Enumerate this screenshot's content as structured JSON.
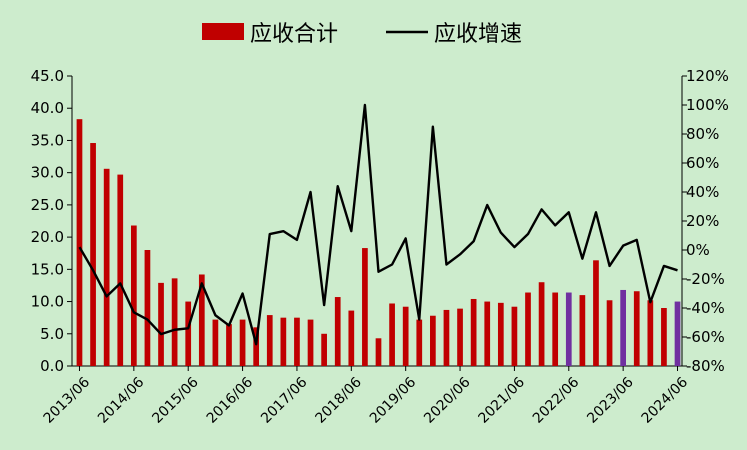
{
  "chart_data": {
    "type": "bar+line",
    "legend": [
      {
        "name": "应收合计",
        "type": "bar",
        "color": "#c00000"
      },
      {
        "name": "应收增速",
        "type": "line",
        "color": "#000000"
      }
    ],
    "legend_position": "top",
    "x_tick_labels": [
      "2013/06",
      "2014/06",
      "2015/06",
      "2016/06",
      "2017/06",
      "2018/06",
      "2019/06",
      "2020/06",
      "2021/06",
      "2022/06",
      "2023/06",
      "2024/06"
    ],
    "y_left": {
      "min": 0,
      "max": 45,
      "ticks": [
        "0.0",
        "5.0",
        "10.0",
        "15.0",
        "20.0",
        "25.0",
        "30.0",
        "35.0",
        "40.0",
        "45.0"
      ]
    },
    "y_right": {
      "min": -80,
      "max": 120,
      "ticks": [
        "-80%",
        "-60%",
        "-40%",
        "-20%",
        "0%",
        "20%",
        "40%",
        "60%",
        "80%",
        "100%",
        "120%"
      ]
    },
    "series": [
      {
        "name": "应收合计",
        "type": "bar",
        "color": "#c00000",
        "highlight_color": "#7030a0",
        "highlight_indices": [
          36,
          40,
          44
        ],
        "values": [
          38.3,
          34.6,
          30.6,
          29.7,
          21.8,
          18.0,
          12.9,
          13.6,
          10.0,
          14.2,
          7.2,
          6.5,
          7.2,
          6.0,
          7.9,
          7.5,
          7.5,
          7.2,
          5.0,
          10.7,
          8.6,
          18.3,
          4.3,
          9.7,
          9.2,
          7.2,
          7.8,
          8.7,
          8.9,
          10.4,
          10.0,
          9.8,
          9.2,
          11.4,
          13.0,
          11.4,
          11.4,
          11.0,
          16.4,
          10.2,
          11.8,
          11.6,
          10.2,
          9.0,
          10.0
        ]
      },
      {
        "name": "应收增速",
        "type": "line",
        "color": "#000000",
        "values": [
          2,
          -14,
          -32,
          -23,
          -43,
          -48,
          -58,
          -55,
          -54,
          -23,
          -45,
          -52,
          -30,
          -65,
          11,
          13,
          7,
          40,
          -38,
          44,
          13,
          100,
          -15,
          -10,
          8,
          -48,
          85,
          -10,
          -3,
          6,
          31,
          12,
          2,
          11,
          28,
          17,
          26,
          -6,
          26,
          -11,
          3,
          7,
          -36,
          -11,
          -14
        ]
      }
    ],
    "grid": false
  }
}
